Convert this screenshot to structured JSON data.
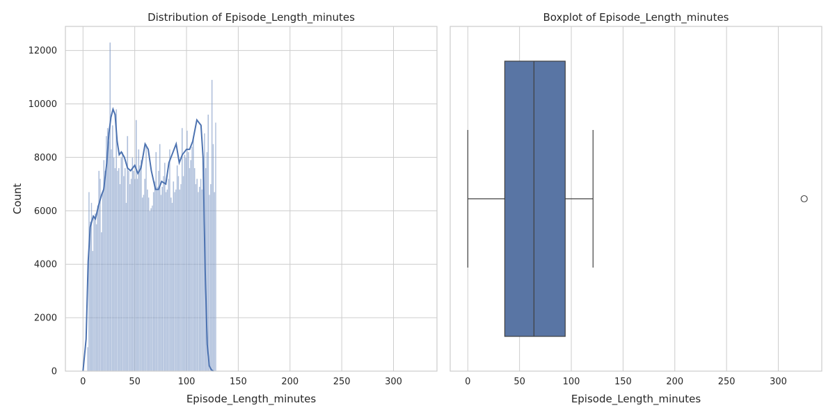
{
  "chart_data": [
    {
      "type": "histogram",
      "title": "Distribution of Episode_Length_minutes",
      "xlabel": "Episode_Length_minutes",
      "ylabel": "Count",
      "xlim": [
        -17,
        342
      ],
      "ylim": [
        0,
        12900
      ],
      "xticks": [
        0,
        50,
        100,
        150,
        200,
        250,
        300
      ],
      "yticks": [
        0,
        2000,
        4000,
        6000,
        8000,
        10000,
        12000
      ],
      "grid": true,
      "bar_color": "#4c72b0",
      "bar_alpha": 0.45,
      "bins": {
        "start": 4,
        "width": 1.2,
        "counts": [
          900,
          6700,
          5600,
          6300,
          4500,
          5800,
          5900,
          5500,
          6200,
          7500,
          7200,
          5200,
          6700,
          7900,
          7500,
          8800,
          9100,
          8600,
          12300,
          8300,
          9200,
          8000,
          7600,
          9800,
          7500,
          7600,
          7000,
          8000,
          8200,
          7300,
          7600,
          6300,
          8800,
          7500,
          7000,
          7200,
          8000,
          7500,
          7200,
          9400,
          7200,
          8300,
          7700,
          7900,
          6500,
          6600,
          7200,
          8500,
          6800,
          6500,
          6000,
          6100,
          6200,
          6700,
          7100,
          8200,
          6900,
          7500,
          8500,
          6600,
          6900,
          7300,
          7800,
          6700,
          6800,
          7200,
          8300,
          6500,
          6300,
          7100,
          6700,
          6800,
          7700,
          7300,
          6800,
          7000,
          9100,
          7300,
          8100,
          8000,
          9000,
          8200,
          7600,
          7900,
          8400,
          8700,
          7600,
          7000,
          7200,
          6700,
          6900,
          7200,
          6800,
          7400,
          8900,
          7600,
          8200,
          9600,
          6600,
          7000,
          10900,
          8500,
          6700,
          9300
        ]
      },
      "kde": {
        "color": "#4c72b0",
        "x": [
          0,
          3,
          5,
          7,
          10,
          12,
          15,
          18,
          20,
          23,
          25,
          27,
          29,
          31,
          33,
          35,
          37,
          40,
          43,
          46,
          50,
          53,
          56,
          60,
          63,
          66,
          70,
          73,
          76,
          80,
          83,
          86,
          90,
          93,
          96,
          100,
          103,
          106,
          110,
          114,
          116,
          118,
          120,
          122,
          124,
          126
        ],
        "y": [
          0,
          1200,
          4100,
          5400,
          5800,
          5700,
          6200,
          6600,
          6800,
          7800,
          8900,
          9500,
          9800,
          9600,
          8600,
          8100,
          8200,
          8000,
          7600,
          7500,
          7700,
          7400,
          7600,
          8500,
          8300,
          7500,
          6800,
          6800,
          7100,
          7000,
          7800,
          8100,
          8500,
          7800,
          8100,
          8300,
          8300,
          8600,
          9400,
          9200,
          8000,
          3800,
          1000,
          200,
          50,
          0
        ]
      }
    },
    {
      "type": "boxplot",
      "title": "Boxplot of Episode_Length_minutes",
      "xlabel": "Episode_Length_minutes",
      "xlim": [
        -17,
        342
      ],
      "xticks": [
        0,
        50,
        100,
        150,
        200,
        250,
        300
      ],
      "grid": true,
      "box_color": "#5975a4",
      "stats": {
        "whisker_low": 0,
        "q1": 35.7,
        "median": 63.9,
        "q3": 94.1,
        "whisker_high": 121,
        "outliers": [
          325
        ]
      }
    }
  ]
}
